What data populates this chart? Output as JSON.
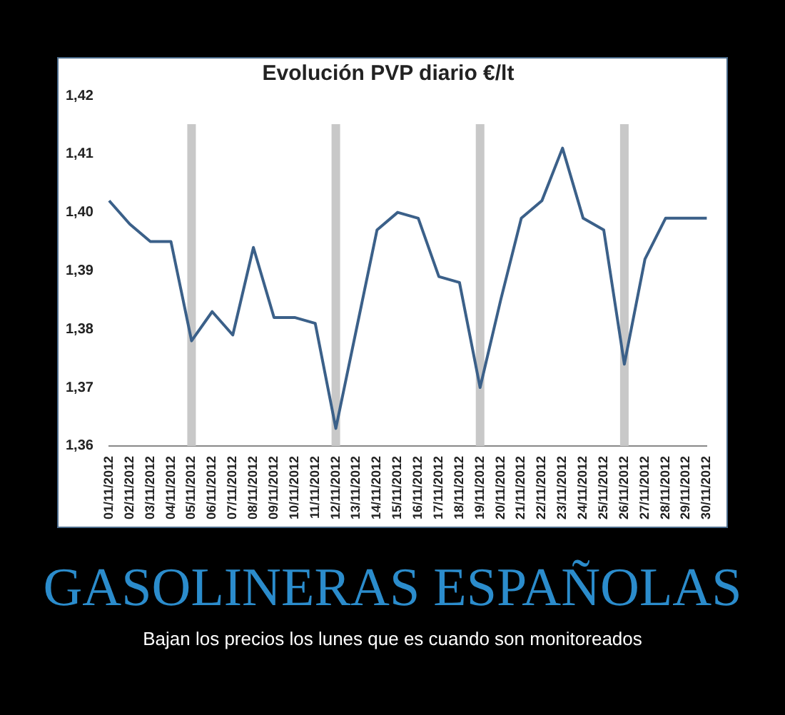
{
  "chart_data": {
    "type": "line",
    "title": "Evolución PVP diario €/lt",
    "categories": [
      "01/11/2012",
      "02/11/2012",
      "03/11/2012",
      "04/11/2012",
      "05/11/2012",
      "06/11/2012",
      "07/11/2012",
      "08/11/2012",
      "09/11/2012",
      "10/11/2012",
      "11/11/2012",
      "12/11/2012",
      "13/11/2012",
      "14/11/2012",
      "15/11/2012",
      "16/11/2012",
      "17/11/2012",
      "18/11/2012",
      "19/11/2012",
      "20/11/2012",
      "21/11/2012",
      "22/11/2012",
      "23/11/2012",
      "24/11/2012",
      "25/11/2012",
      "26/11/2012",
      "27/11/2012",
      "28/11/2012",
      "29/11/2012",
      "30/11/2012"
    ],
    "series": [
      {
        "color": "#3b6089",
        "values": [
          1.402,
          1.398,
          1.395,
          1.395,
          1.378,
          1.383,
          1.379,
          1.394,
          1.382,
          1.382,
          1.381,
          1.363,
          1.38,
          1.397,
          1.4,
          1.399,
          1.389,
          1.388,
          1.37,
          1.385,
          1.399,
          1.402,
          1.411,
          1.399,
          1.397,
          1.374,
          1.392,
          1.399,
          1.399,
          1.399
        ]
      }
    ],
    "ylim": [
      1.36,
      1.42
    ],
    "yticks": [
      {
        "value": 1.36,
        "label": "1,36"
      },
      {
        "value": 1.37,
        "label": "1,37"
      },
      {
        "value": 1.38,
        "label": "1,38"
      },
      {
        "value": 1.39,
        "label": "1,39"
      },
      {
        "value": 1.4,
        "label": "1,40"
      },
      {
        "value": 1.41,
        "label": "1,41"
      },
      {
        "value": 1.42,
        "label": "1,42"
      }
    ],
    "bands": [
      {
        "axis": "x",
        "from": "05/11/2012",
        "to": "05/11/2012",
        "color": "#c8c8c8"
      },
      {
        "axis": "x",
        "from": "12/11/2012",
        "to": "12/11/2012",
        "color": "#c8c8c8"
      },
      {
        "axis": "x",
        "from": "19/11/2012",
        "to": "19/11/2012",
        "color": "#c8c8c8"
      },
      {
        "axis": "x",
        "from": "26/11/2012",
        "to": "26/11/2012",
        "color": "#c8c8c8"
      }
    ],
    "grid": false,
    "legend": false,
    "marker": "none",
    "line_style": "solid",
    "annotations": [
      "GASOLINERAS ESPAÑOLAS",
      "Bajan los precios los lunes que es cuando son monitoreados"
    ]
  }
}
